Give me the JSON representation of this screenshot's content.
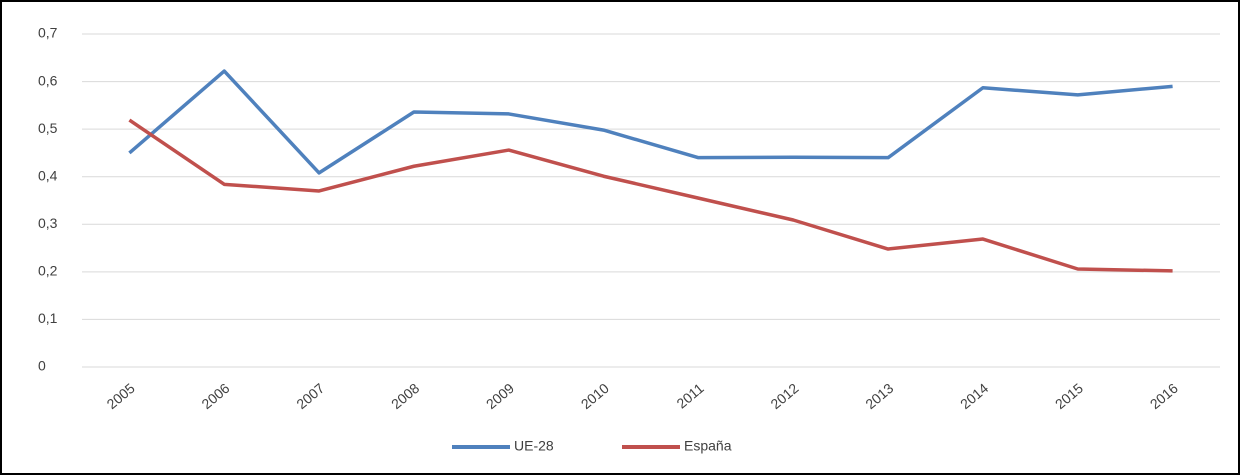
{
  "chart_data": {
    "type": "line",
    "categories": [
      "2005",
      "2006",
      "2007",
      "2008",
      "2009",
      "2010",
      "2011",
      "2012",
      "2013",
      "2014",
      "2015",
      "2016"
    ],
    "series": [
      {
        "name": "UE-28",
        "color": "#4f81bd",
        "values": [
          0.45,
          0.622,
          0.408,
          0.536,
          0.532,
          0.498,
          0.44,
          0.441,
          0.44,
          0.587,
          0.572,
          0.59
        ]
      },
      {
        "name": "España",
        "color": "#c0504d",
        "values": [
          0.519,
          0.384,
          0.37,
          0.422,
          0.456,
          0.401,
          0.355,
          0.309,
          0.248,
          0.269,
          0.206,
          0.202
        ]
      }
    ],
    "ylim": [
      0,
      0.7
    ],
    "yticks": [
      0,
      {
        "value": 0.1,
        "label": "0,1"
      },
      {
        "value": 0.2,
        "label": "0,2"
      },
      {
        "value": 0.3,
        "label": "0,3"
      },
      {
        "value": 0.4,
        "label": "0,4"
      },
      {
        "value": 0.5,
        "label": "0,5"
      },
      {
        "value": 0.6,
        "label": "0,6"
      },
      {
        "value": 0.7,
        "label": "0,7"
      }
    ],
    "grid": true,
    "legend": "bottom"
  }
}
